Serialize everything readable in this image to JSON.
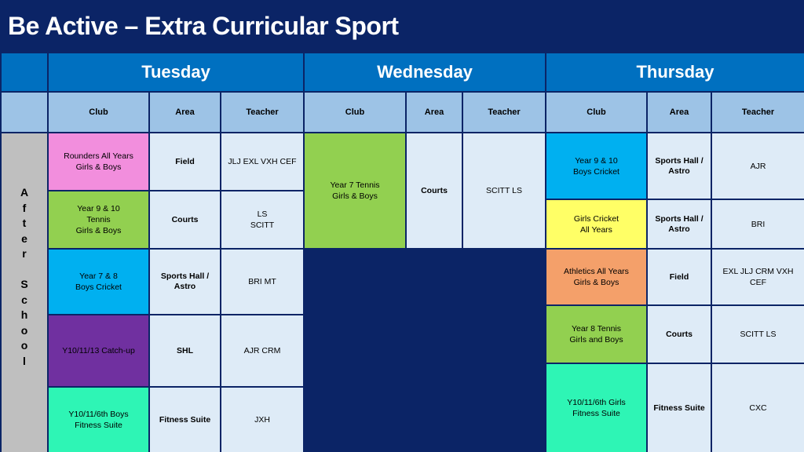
{
  "title": "Be Active – Extra Curricular Sport",
  "side_label_letters": [
    "A",
    "f",
    "t",
    "e",
    "r",
    " ",
    "S",
    "c",
    "h",
    "o",
    "o",
    "l"
  ],
  "days": [
    "Tuesday",
    "Wednesday",
    "Thursday"
  ],
  "headers": {
    "club": "Club",
    "area": "Area",
    "teacher": "Teacher"
  },
  "colors": {
    "background": "#0B2466",
    "day_header": "#0070C0",
    "col_header": "#9DC3E6",
    "cell": "#DEEBF7",
    "side": "#BFBFBF",
    "pink": "#F28EDD",
    "green": "#92D050",
    "blue": "#00B0F0",
    "purple": "#7030A0",
    "mint": "#2EF5B5",
    "yellow": "#FFFF66",
    "orange": "#F4A06A"
  },
  "tuesday": [
    {
      "club": "Rounders All Years\nGirls & Boys",
      "area": "Field",
      "teacher": "JLJ EXL VXH CEF",
      "color": "pink"
    },
    {
      "club": "Year 9 & 10\nTennis\nGirls & Boys",
      "area": "Courts",
      "teacher": "LS\nSCITT",
      "color": "green"
    },
    {
      "club": "Year 7 & 8\nBoys Cricket",
      "area": "Sports Hall /\nAstro",
      "teacher": "BRI MT",
      "color": "blue"
    },
    {
      "club": "Y10/11/13 Catch-up",
      "area": "SHL",
      "teacher": "AJR CRM",
      "color": "purple"
    },
    {
      "club": "Y10/11/6th Boys\nFitness Suite",
      "area": "Fitness Suite",
      "teacher": "JXH",
      "color": "mint"
    }
  ],
  "wednesday": [
    {
      "club": "Year 7 Tennis\nGirls & Boys",
      "area": "Courts",
      "teacher": "SCITT LS",
      "color": "green"
    }
  ],
  "thursday": [
    {
      "club": "Year 9 & 10\nBoys Cricket",
      "area": "Sports Hall /\nAstro",
      "teacher": "AJR",
      "color": "blue"
    },
    {
      "club": "Girls Cricket\nAll Years",
      "area": "Sports Hall /\nAstro",
      "teacher": "BRI",
      "color": "yellow"
    },
    {
      "club": "Athletics All Years\nGirls & Boys",
      "area": "Field",
      "teacher": "EXL JLJ CRM VXH\nCEF",
      "color": "orange"
    },
    {
      "club": "Year 8 Tennis\nGirls and Boys",
      "area": "Courts",
      "teacher": "SCITT LS",
      "color": "green"
    },
    {
      "club": "Y10/11/6th Girls\nFitness Suite",
      "area": "Fitness Suite",
      "teacher": "CXC",
      "color": "mint"
    }
  ]
}
